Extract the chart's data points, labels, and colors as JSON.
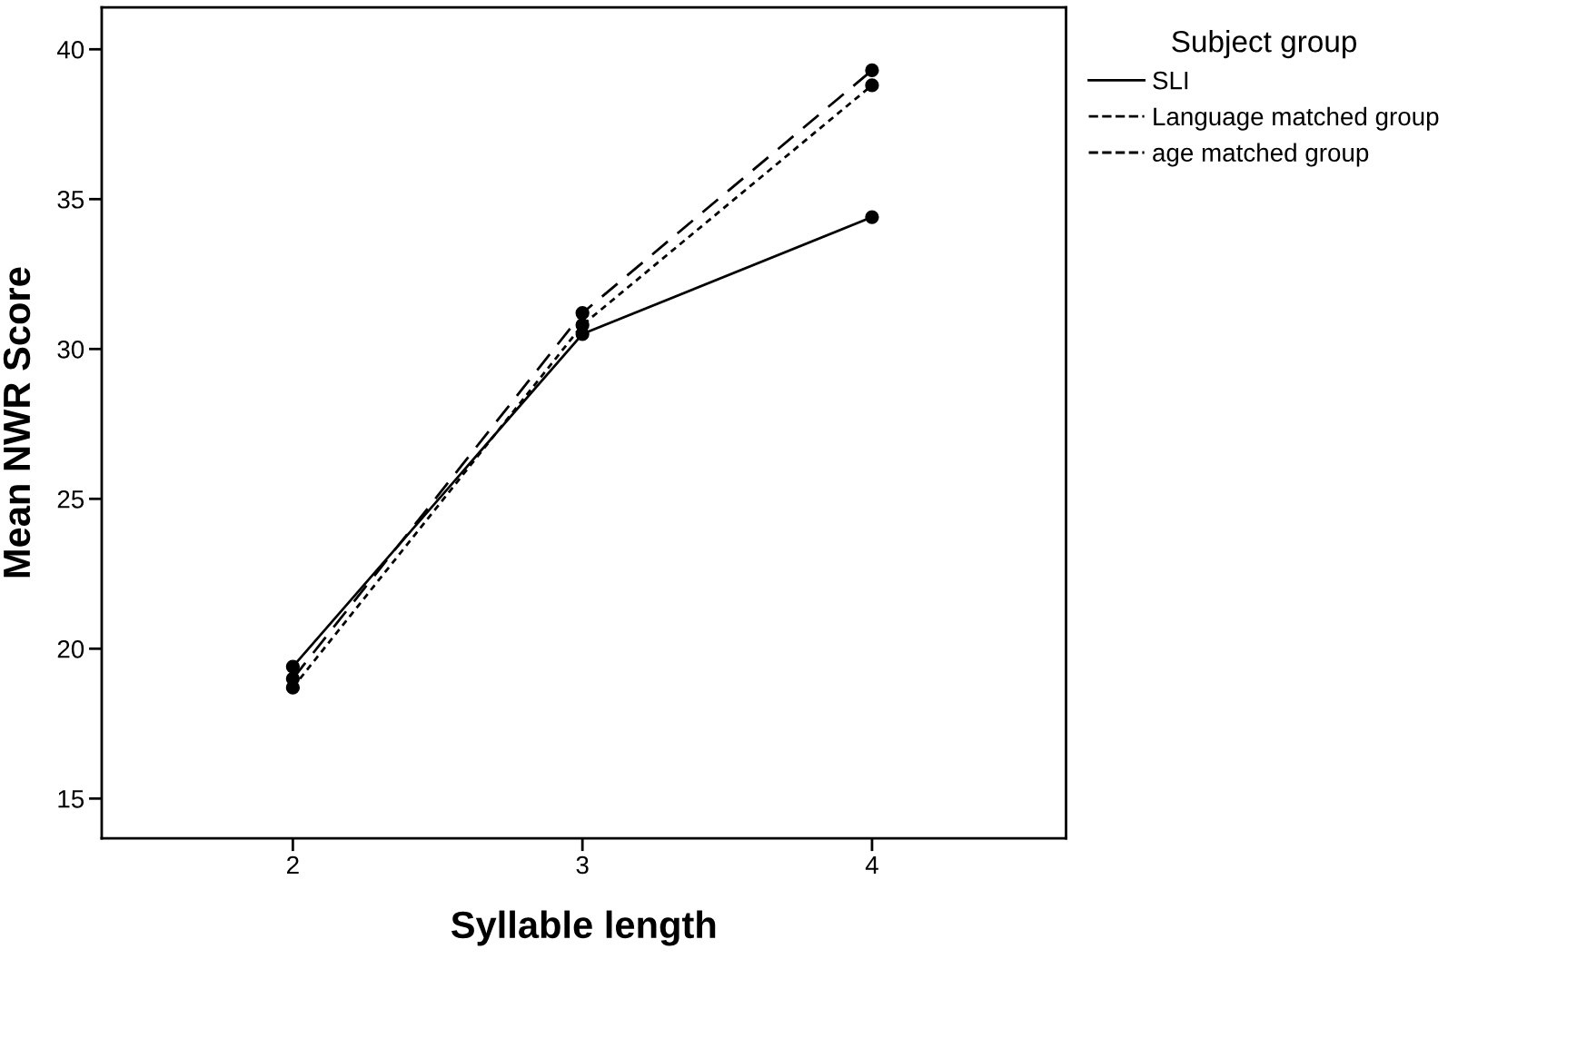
{
  "chart_data": {
    "type": "line",
    "xlabel": "Syllable length",
    "ylabel": "Mean NWR Score",
    "legend_title": "Subject group",
    "x": [
      2,
      3,
      4
    ],
    "xlim": [
      1.34,
      4.67
    ],
    "xticks": [
      2,
      3,
      4
    ],
    "ylim": [
      13.67,
      41.4
    ],
    "yticks": [
      15,
      20,
      25,
      30,
      35,
      40
    ],
    "series": [
      {
        "name": "SLI",
        "color": "#000000",
        "line_style": "solid",
        "values": [
          19.4,
          30.5,
          34.4
        ]
      },
      {
        "name": "Language matched group",
        "color": "#000000",
        "line_style": "dotted",
        "values": [
          18.7,
          30.8,
          38.8
        ]
      },
      {
        "name": "age matched group",
        "color": "#000000",
        "line_style": "dashed",
        "values": [
          19.0,
          31.2,
          39.3
        ]
      }
    ],
    "marker": "circle",
    "grid": false,
    "legend": "top right"
  }
}
